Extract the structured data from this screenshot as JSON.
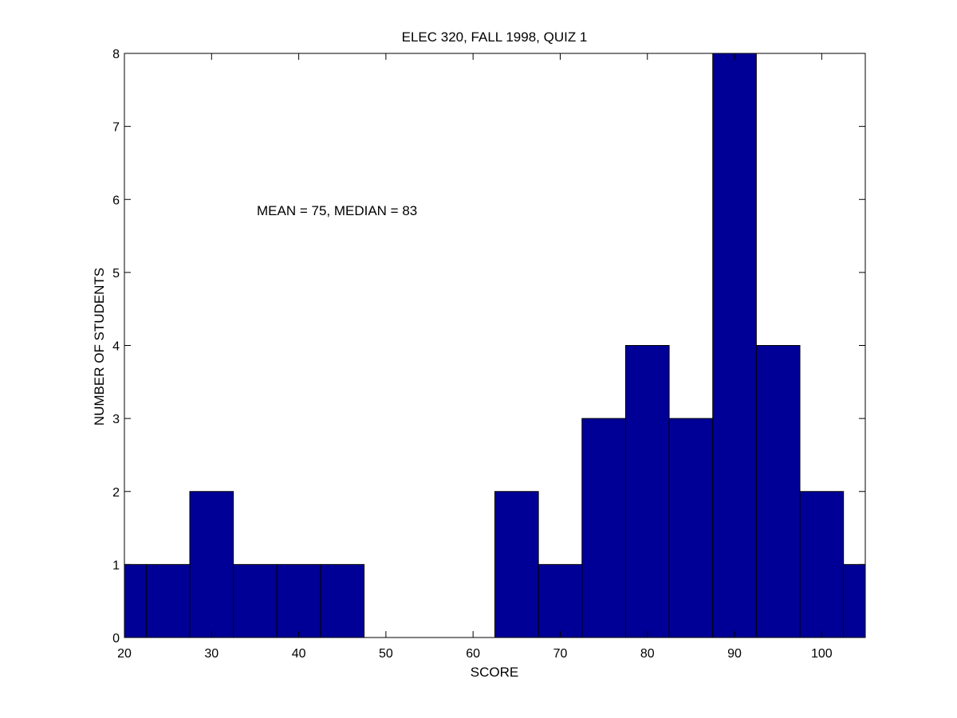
{
  "chart_data": {
    "type": "bar",
    "title": "ELEC 320, FALL 1998, QUIZ 1",
    "xlabel": "SCORE",
    "ylabel": "NUMBER OF STUDENTS",
    "annotation": "MEAN = 75, MEDIAN = 83",
    "xlim": [
      20,
      105
    ],
    "ylim": [
      0,
      8
    ],
    "xticks": [
      20,
      30,
      40,
      50,
      60,
      70,
      80,
      90,
      100
    ],
    "yticks": [
      0,
      1,
      2,
      3,
      4,
      5,
      6,
      7,
      8
    ],
    "bin_width": 5,
    "bins": [
      {
        "center": 20,
        "count": 1
      },
      {
        "center": 25,
        "count": 1
      },
      {
        "center": 30,
        "count": 2
      },
      {
        "center": 35,
        "count": 1
      },
      {
        "center": 40,
        "count": 1
      },
      {
        "center": 45,
        "count": 1
      },
      {
        "center": 50,
        "count": 0
      },
      {
        "center": 55,
        "count": 0
      },
      {
        "center": 60,
        "count": 0
      },
      {
        "center": 65,
        "count": 2
      },
      {
        "center": 70,
        "count": 1
      },
      {
        "center": 75,
        "count": 3
      },
      {
        "center": 80,
        "count": 4
      },
      {
        "center": 85,
        "count": 3
      },
      {
        "center": 90,
        "count": 8
      },
      {
        "center": 95,
        "count": 4
      },
      {
        "center": 100,
        "count": 2
      },
      {
        "center": 105,
        "count": 1
      }
    ],
    "bar_color": "#000096",
    "bar_edge_color": "#000000",
    "grid": false
  }
}
